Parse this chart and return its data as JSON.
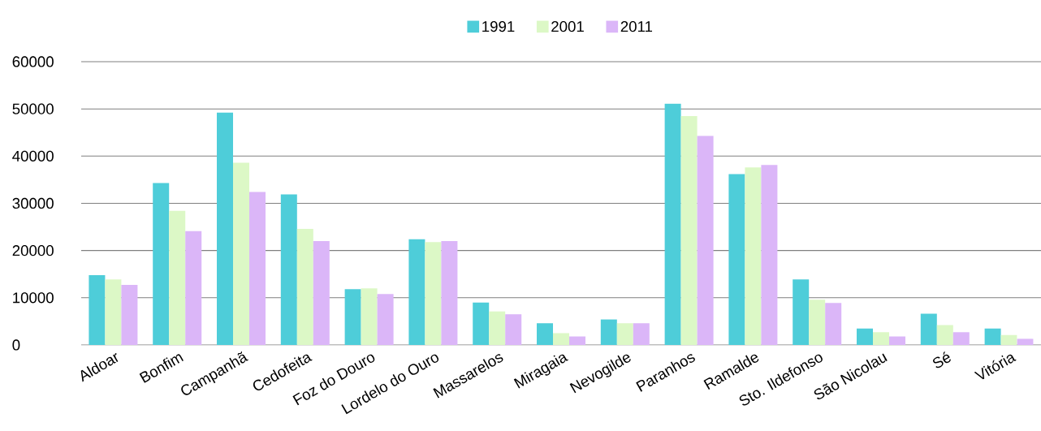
{
  "chart_data": {
    "type": "bar",
    "categories": [
      "Aldoar",
      "Bonfim",
      "Campanhã",
      "Cedofeita",
      "Foz do Douro",
      "Lordelo do Ouro",
      "Massarelos",
      "Miragaia",
      "Nevogilde",
      "Paranhos",
      "Ramalde",
      "Sto. Ildefonso",
      "São Nicolau",
      "Sé",
      "Vitória"
    ],
    "series": [
      {
        "name": "1991",
        "color": "#4ecdd9",
        "values": [
          14800,
          34300,
          49200,
          31900,
          11800,
          22400,
          9000,
          4600,
          5400,
          51100,
          36200,
          13900,
          3500,
          6600,
          3500
        ]
      },
      {
        "name": "2001",
        "color": "#dcf8c6",
        "values": [
          13900,
          28400,
          38600,
          24600,
          12000,
          21800,
          7100,
          2500,
          4600,
          48500,
          37600,
          9600,
          2700,
          4200,
          2100
        ]
      },
      {
        "name": "2011",
        "color": "#dbb6f8",
        "values": [
          12700,
          24100,
          32400,
          22000,
          10800,
          22000,
          6500,
          1800,
          4600,
          44300,
          38100,
          8900,
          1800,
          2700,
          1300
        ]
      }
    ],
    "ylim": [
      0,
      60000
    ],
    "yticks": [
      0,
      10000,
      20000,
      30000,
      40000,
      50000,
      60000
    ],
    "grid": "y",
    "legend": "top"
  }
}
